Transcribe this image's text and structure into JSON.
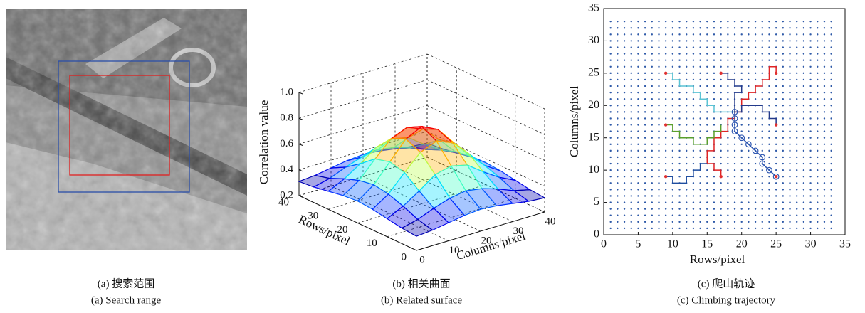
{
  "panels": [
    {
      "caption_cn": "(a) 搜索范围",
      "caption_en": "(a) Search range"
    },
    {
      "caption_cn": "(b) 相关曲面",
      "caption_en": "(b) Related surface"
    },
    {
      "caption_cn": "(c) 爬山轨迹",
      "caption_en": "(c) Climbing trajectory"
    }
  ],
  "chart_data": [
    {
      "type": "surface",
      "zlabel": "Correlation value",
      "ylabel": "Rows/pixel",
      "xlabel": "Columns/pixel",
      "x": [
        0,
        5,
        10,
        15,
        20,
        25,
        30,
        35,
        40
      ],
      "y": [
        0,
        5,
        10,
        15,
        20,
        25,
        30,
        35,
        40
      ],
      "z": [
        [
          0.31,
          0.32,
          0.34,
          0.36,
          0.37,
          0.36,
          0.34,
          0.32,
          0.31
        ],
        [
          0.32,
          0.35,
          0.4,
          0.44,
          0.46,
          0.44,
          0.4,
          0.35,
          0.32
        ],
        [
          0.34,
          0.4,
          0.48,
          0.57,
          0.6,
          0.57,
          0.48,
          0.4,
          0.34
        ],
        [
          0.36,
          0.44,
          0.57,
          0.69,
          0.74,
          0.69,
          0.57,
          0.44,
          0.36
        ],
        [
          0.37,
          0.46,
          0.6,
          0.74,
          0.8,
          0.74,
          0.6,
          0.46,
          0.37
        ],
        [
          0.36,
          0.44,
          0.57,
          0.69,
          0.74,
          0.69,
          0.57,
          0.44,
          0.36
        ],
        [
          0.34,
          0.4,
          0.48,
          0.57,
          0.6,
          0.57,
          0.48,
          0.4,
          0.34
        ],
        [
          0.32,
          0.35,
          0.4,
          0.44,
          0.46,
          0.44,
          0.4,
          0.35,
          0.32
        ],
        [
          0.31,
          0.32,
          0.34,
          0.36,
          0.37,
          0.36,
          0.34,
          0.32,
          0.31
        ]
      ],
      "xlim": [
        0,
        40
      ],
      "ylim": [
        0,
        40
      ],
      "zlim": [
        0.2,
        1.0
      ],
      "xticks": [
        0,
        10,
        20,
        30,
        40
      ],
      "yticks": [
        0,
        10,
        20,
        30,
        40
      ],
      "zticks": [
        0.2,
        0.4,
        0.6,
        0.8,
        {
          "value": 1,
          "label": "1.0"
        }
      ],
      "colormap": "jet",
      "grid": true
    },
    {
      "type": "line",
      "xlabel": "Rows/pixel",
      "ylabel": "Columns/pixel",
      "xlim": [
        0,
        35
      ],
      "ylim": [
        0,
        35
      ],
      "xticks": [
        0,
        5,
        10,
        15,
        20,
        25,
        30,
        35
      ],
      "yticks": [
        0,
        5,
        10,
        15,
        20,
        25,
        30,
        35
      ],
      "grid_dots": {
        "color": "#2f5aa8",
        "positions": [
          1,
          2,
          3,
          4,
          5,
          6,
          7,
          8,
          9,
          10,
          11,
          12,
          13,
          14,
          15,
          16,
          17,
          18,
          19,
          20,
          21,
          22,
          23,
          24,
          25,
          26,
          27,
          28,
          29,
          30,
          31,
          32,
          33
        ]
      },
      "series": [
        {
          "color": "#5bc4d4",
          "x": [
            9,
            10,
            10,
            11,
            11,
            13,
            13,
            14,
            14,
            15,
            15,
            16,
            16,
            19
          ],
          "y": [
            25,
            25,
            24,
            24,
            23,
            23,
            22,
            22,
            21,
            21,
            20,
            20,
            19,
            19
          ]
        },
        {
          "color": "#e02424",
          "x": [
            17,
            17,
            16,
            16,
            15,
            15,
            16,
            16,
            17,
            17,
            18,
            18,
            19,
            19,
            20,
            20,
            21,
            21,
            22,
            22,
            23,
            23,
            24,
            24,
            25,
            25
          ],
          "y": [
            9,
            10,
            10,
            11,
            11,
            13,
            13,
            15,
            15,
            16,
            16,
            18,
            18,
            19,
            19,
            21,
            21,
            22,
            22,
            23,
            23,
            24,
            24,
            26,
            26,
            25
          ]
        },
        {
          "color": "#5aa02c",
          "x": [
            9,
            10,
            10,
            11,
            11,
            13,
            13,
            15,
            15,
            16,
            16,
            17,
            17
          ],
          "y": [
            17,
            17,
            16,
            16,
            15,
            15,
            14,
            14,
            15,
            15,
            16,
            16,
            17
          ]
        },
        {
          "color": "#1f4ea0",
          "x": [
            9,
            10,
            10,
            12,
            12,
            13,
            13,
            14,
            14,
            15
          ],
          "y": [
            9,
            9,
            8,
            8,
            9,
            9,
            10,
            10,
            11,
            11
          ]
        },
        {
          "color": "#243a8a",
          "x": [
            17,
            18,
            18,
            19,
            19,
            20,
            20,
            19,
            19,
            20,
            20,
            23,
            23,
            24,
            24,
            25,
            25
          ],
          "y": [
            25,
            25,
            24,
            24,
            23,
            23,
            22,
            22,
            19,
            19,
            20,
            20,
            19,
            19,
            18,
            18,
            17
          ]
        },
        {
          "color": "#2c55b0",
          "marker": "circle",
          "x": [
            19,
            19,
            19,
            19,
            20,
            21,
            22,
            23,
            23,
            24,
            25
          ],
          "y": [
            19,
            18,
            17,
            16,
            15,
            14,
            13,
            12,
            11,
            10,
            9
          ]
        }
      ],
      "end_points": {
        "color": "#e03030",
        "x": [
          9,
          9,
          9,
          17,
          17,
          25,
          25,
          25
        ],
        "y": [
          25,
          17,
          9,
          9,
          25,
          25,
          17,
          9
        ]
      }
    }
  ]
}
